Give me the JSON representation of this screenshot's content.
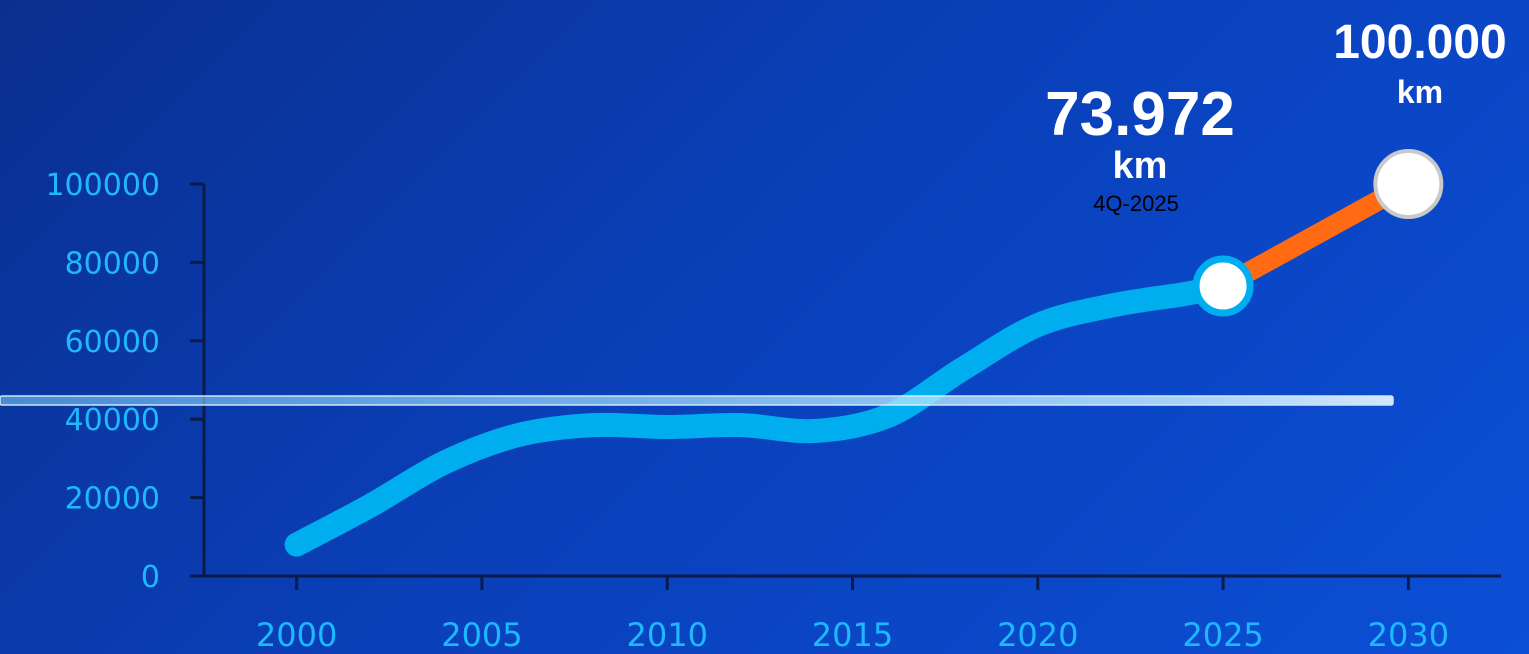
{
  "colors": {
    "actual_line": "#00aeef",
    "target_line": "#ff6a13",
    "tick_text": "#1eb8ff",
    "axis": "#0a1b4a",
    "marker_fill": "#ffffff",
    "marker_target_stroke": "#c9c9c9"
  },
  "chart_data": {
    "type": "line",
    "x": [
      2000,
      2002,
      2004,
      2006,
      2008,
      2010,
      2012,
      2014,
      2016,
      2018,
      2020,
      2022,
      2024,
      2025
    ],
    "series": [
      {
        "values": [
          8000,
          18000,
          29000,
          36000,
          38500,
          38000,
          38500,
          37000,
          41000,
          53000,
          64000,
          69000,
          72000,
          73972
        ]
      }
    ],
    "projection": {
      "x": [
        2025,
        2030
      ],
      "values": [
        73972,
        100000
      ]
    },
    "x_ticks": [
      2000,
      2005,
      2010,
      2015,
      2020,
      2025,
      2030
    ],
    "y_ticks": [
      0,
      20000,
      40000,
      60000,
      80000,
      100000
    ],
    "xlim": [
      1997.5,
      2032.5
    ],
    "ylim": [
      0,
      100000
    ],
    "callouts": [
      {
        "value": "73.972",
        "unit": "km",
        "period": "4Q-2025"
      },
      {
        "value": "100.000",
        "unit": "km"
      }
    ]
  }
}
